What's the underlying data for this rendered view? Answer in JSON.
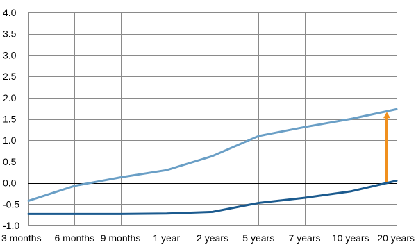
{
  "chart_data": {
    "type": "line",
    "title": "",
    "xlabel": "",
    "ylabel": "",
    "categories": [
      "3 months",
      "6 months",
      "9 months",
      "1 year",
      "2 years",
      "5 years",
      "7 years",
      "10 years",
      "20 years"
    ],
    "ylim": [
      -1.0,
      4.0
    ],
    "yticks": [
      "4.0",
      "3.5",
      "3.0",
      "2.5",
      "2.0",
      "1.5",
      "1.0",
      "0.5",
      "0.0",
      "-0.5",
      "-1.0"
    ],
    "grid": true,
    "legend": "none",
    "series": [
      {
        "color": "#6a9fc6",
        "values": [
          -0.42,
          -0.07,
          0.13,
          0.3,
          0.63,
          1.1,
          1.31,
          1.5,
          1.73
        ]
      },
      {
        "color": "#1b5a8e",
        "values": [
          -0.73,
          -0.73,
          -0.73,
          -0.72,
          -0.68,
          -0.47,
          -0.35,
          -0.2,
          0.05
        ]
      }
    ],
    "annotations": [
      {
        "type": "arrow",
        "category": "20 years",
        "from": 0.02,
        "to": 1.65,
        "color": "#f0901e"
      }
    ]
  }
}
